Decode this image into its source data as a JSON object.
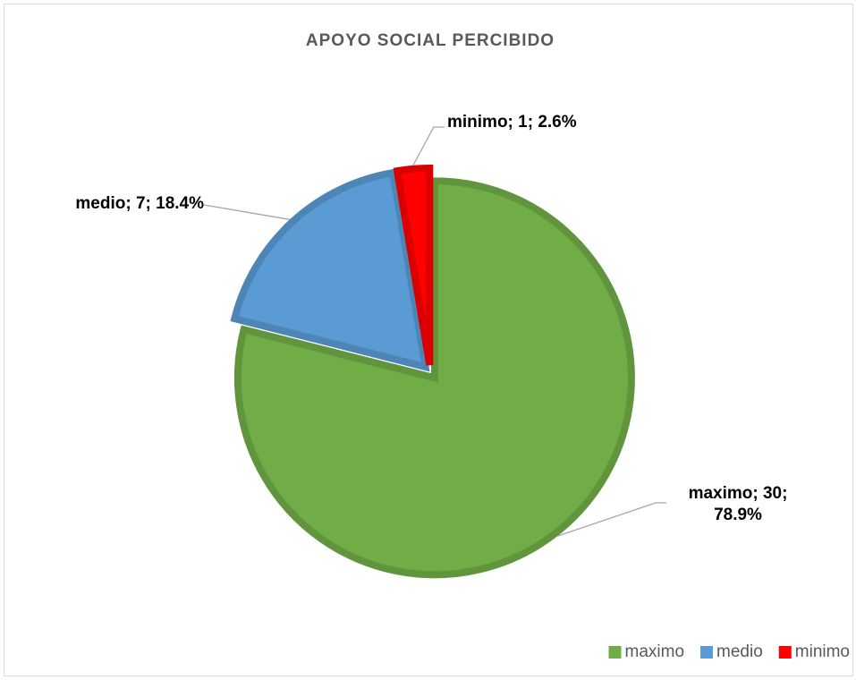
{
  "chart_data": {
    "type": "pie",
    "title": "APOYO SOCIAL PERCIBIDO",
    "categories": [
      "maximo",
      "medio",
      "minimo"
    ],
    "values": [
      30,
      7,
      1
    ],
    "value_labels": [
      "maximo; 30; 78.9%",
      "medio; 7; 18.4%",
      "minimo; 1; 2.6%"
    ],
    "colors": [
      "#70ad47",
      "#5b9bd5",
      "#ff0000"
    ],
    "legend": "bottom-right"
  }
}
